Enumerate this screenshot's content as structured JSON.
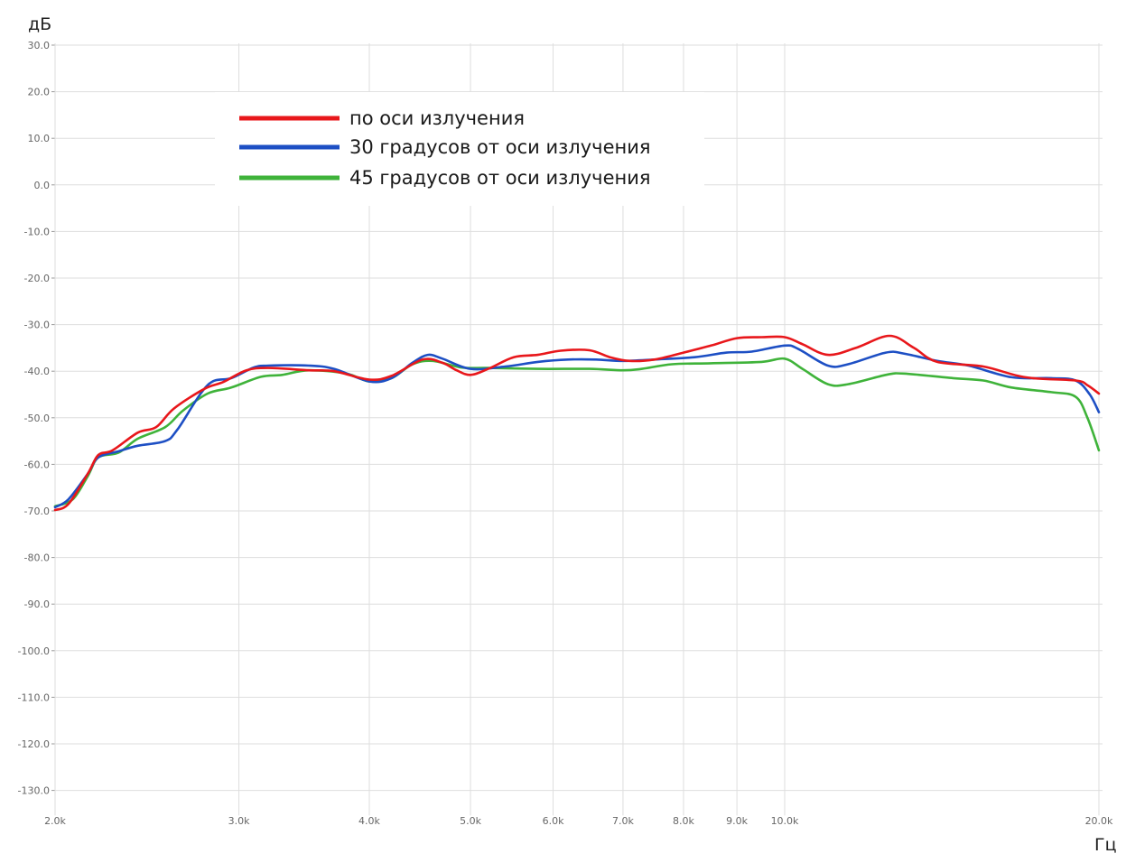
{
  "chart_data": {
    "type": "line",
    "ylabel": "дБ",
    "xlabel": "Гц",
    "xscale": "log",
    "xlim": [
      2000,
      20000
    ],
    "ylim": [
      -135,
      30
    ],
    "grid": true,
    "legend_position": "top-center",
    "y_ticks": [
      30,
      20,
      10,
      0,
      -10,
      -20,
      -30,
      -40,
      -50,
      -60,
      -70,
      -80,
      -90,
      -100,
      -110,
      -120,
      -130
    ],
    "y_tick_labels": [
      "30.0",
      "20.0",
      "10.0",
      "0.0",
      "-10.0",
      "-20.0",
      "-30.0",
      "-40.0",
      "-50.0",
      "-60.0",
      "-70.0",
      "-80.0",
      "-90.0",
      "-100.0",
      "-110.0",
      "-120.0",
      "-130.0"
    ],
    "x_ticks": [
      2000,
      3000,
      4000,
      5000,
      6000,
      7000,
      8000,
      9000,
      10000,
      20000
    ],
    "x_tick_labels": [
      "2.0k",
      "3.0k",
      "4.0k",
      "5.0k",
      "6.0k",
      "7.0k",
      "8.0k",
      "9.0k",
      "10.0k",
      "20.0k"
    ],
    "series": [
      {
        "name": "по оси излучения",
        "color": "#e8171b",
        "points": [
          [
            2000,
            -69.8
          ],
          [
            2060,
            -68.5
          ],
          [
            2150,
            -62
          ],
          [
            2200,
            -58
          ],
          [
            2270,
            -57
          ],
          [
            2400,
            -53.2
          ],
          [
            2500,
            -52
          ],
          [
            2600,
            -48
          ],
          [
            2780,
            -43.8
          ],
          [
            2900,
            -42.3
          ],
          [
            3050,
            -39.8
          ],
          [
            3200,
            -39.3
          ],
          [
            3500,
            -39.8
          ],
          [
            3700,
            -40
          ],
          [
            4000,
            -41.8
          ],
          [
            4200,
            -41
          ],
          [
            4500,
            -37.5
          ],
          [
            4700,
            -38.2
          ],
          [
            4850,
            -39.8
          ],
          [
            5000,
            -40.8
          ],
          [
            5200,
            -39.5
          ],
          [
            5500,
            -37
          ],
          [
            5800,
            -36.5
          ],
          [
            6100,
            -35.6
          ],
          [
            6500,
            -35.5
          ],
          [
            6800,
            -37
          ],
          [
            7100,
            -37.8
          ],
          [
            7500,
            -37.5
          ],
          [
            8000,
            -36
          ],
          [
            8500,
            -34.5
          ],
          [
            9000,
            -32.9
          ],
          [
            9500,
            -32.7
          ],
          [
            10000,
            -32.7
          ],
          [
            10400,
            -34.2
          ],
          [
            11000,
            -36.5
          ],
          [
            11700,
            -35
          ],
          [
            12600,
            -32.4
          ],
          [
            13300,
            -35
          ],
          [
            14000,
            -38
          ],
          [
            15500,
            -39
          ],
          [
            17000,
            -41.3
          ],
          [
            19000,
            -42
          ],
          [
            19500,
            -43
          ],
          [
            20000,
            -44.8
          ]
        ]
      },
      {
        "name": "30 градусов от оси излучения",
        "color": "#1d4fc4",
        "points": [
          [
            2000,
            -69.2
          ],
          [
            2060,
            -67.5
          ],
          [
            2150,
            -62
          ],
          [
            2200,
            -58.5
          ],
          [
            2300,
            -57.2
          ],
          [
            2400,
            -56
          ],
          [
            2550,
            -55
          ],
          [
            2620,
            -52.5
          ],
          [
            2800,
            -43
          ],
          [
            2950,
            -41.5
          ],
          [
            3100,
            -39.2
          ],
          [
            3200,
            -38.8
          ],
          [
            3500,
            -38.8
          ],
          [
            3700,
            -39.5
          ],
          [
            4000,
            -42.2
          ],
          [
            4200,
            -41.5
          ],
          [
            4400,
            -38.2
          ],
          [
            4550,
            -36.5
          ],
          [
            4700,
            -37.3
          ],
          [
            5000,
            -39.5
          ],
          [
            5400,
            -39
          ],
          [
            5800,
            -38
          ],
          [
            6200,
            -37.5
          ],
          [
            6600,
            -37.5
          ],
          [
            7000,
            -37.8
          ],
          [
            7500,
            -37.5
          ],
          [
            8200,
            -37
          ],
          [
            8800,
            -36
          ],
          [
            9300,
            -35.8
          ],
          [
            10000,
            -34.5
          ],
          [
            10300,
            -35.2
          ],
          [
            11000,
            -38.8
          ],
          [
            11500,
            -38.5
          ],
          [
            12500,
            -36
          ],
          [
            13000,
            -36.2
          ],
          [
            14000,
            -37.8
          ],
          [
            15000,
            -38.8
          ],
          [
            16500,
            -41.3
          ],
          [
            18000,
            -41.5
          ],
          [
            19000,
            -42
          ],
          [
            19600,
            -45
          ],
          [
            20000,
            -48.8
          ]
        ]
      },
      {
        "name": "45 градусов от оси излучения",
        "color": "#3fb33a",
        "points": [
          [
            2000,
            -69
          ],
          [
            2080,
            -67.5
          ],
          [
            2150,
            -62.5
          ],
          [
            2200,
            -58.5
          ],
          [
            2300,
            -57.5
          ],
          [
            2400,
            -54.5
          ],
          [
            2550,
            -52
          ],
          [
            2650,
            -48.5
          ],
          [
            2800,
            -44.8
          ],
          [
            2950,
            -43.5
          ],
          [
            3150,
            -41.2
          ],
          [
            3300,
            -40.8
          ],
          [
            3500,
            -39.8
          ],
          [
            3800,
            -40.5
          ],
          [
            4000,
            -42.2
          ],
          [
            4200,
            -41.5
          ],
          [
            4400,
            -38.5
          ],
          [
            4600,
            -37.8
          ],
          [
            4900,
            -39.2
          ],
          [
            5200,
            -39.3
          ],
          [
            5800,
            -39.5
          ],
          [
            6500,
            -39.5
          ],
          [
            7000,
            -39.8
          ],
          [
            7300,
            -39.5
          ],
          [
            7800,
            -38.5
          ],
          [
            8500,
            -38.3
          ],
          [
            9500,
            -38
          ],
          [
            10000,
            -37.3
          ],
          [
            10400,
            -39.5
          ],
          [
            11000,
            -42.8
          ],
          [
            11500,
            -42.8
          ],
          [
            12500,
            -40.8
          ],
          [
            13000,
            -40.5
          ],
          [
            14500,
            -41.5
          ],
          [
            15500,
            -42
          ],
          [
            16500,
            -43.5
          ],
          [
            18000,
            -44.5
          ],
          [
            19000,
            -45.5
          ],
          [
            19500,
            -50
          ],
          [
            20000,
            -57
          ]
        ]
      }
    ]
  }
}
